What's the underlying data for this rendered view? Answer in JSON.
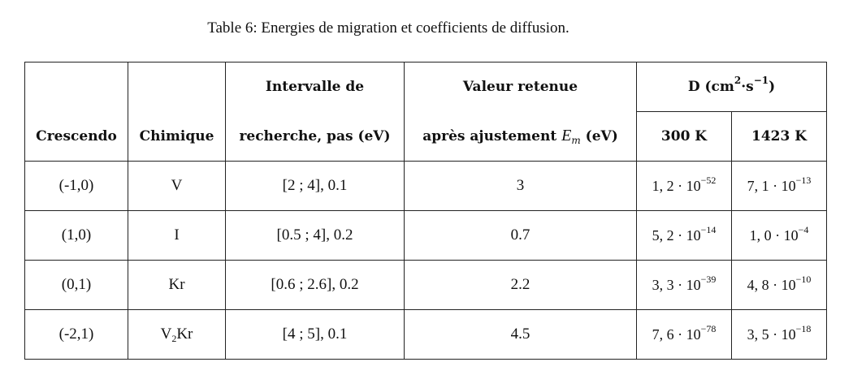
{
  "caption": "Table 6: Energies de migration et coefficients de diffusion.",
  "headers": {
    "crescendo": "Crescendo",
    "chimique": "Chimique",
    "intervalle_line1": "Intervalle de",
    "intervalle_line2": "recherche, pas (eV)",
    "valeur_line1": "Valeur retenue",
    "valeur_line2_prefix": "après ajustement ",
    "valeur_symbol": "E",
    "valeur_subscript": "m",
    "valeur_unit": " (eV)",
    "d_prefix": "D (cm",
    "d_sup1": "2",
    "d_mid": "·s",
    "d_sup2": "−1",
    "d_suffix": ")",
    "t300": "300 K",
    "t1423": "1423 K"
  },
  "rows": [
    {
      "crescendo": "(-1,0)",
      "chimique_base": "V",
      "chimique_sub": "",
      "chimique_tail": "",
      "intervalle": "[2 ; 4], 0.1",
      "valeur": "3",
      "d300_mant": "1, 2 · 10",
      "d300_exp": "−52",
      "d1423_mant": "7, 1 · 10",
      "d1423_exp": "−13"
    },
    {
      "crescendo": "(1,0)",
      "chimique_base": "I",
      "chimique_sub": "",
      "chimique_tail": "",
      "intervalle": "[0.5 ; 4], 0.2",
      "valeur": "0.7",
      "d300_mant": "5, 2 · 10",
      "d300_exp": "−14",
      "d1423_mant": "1, 0 · 10",
      "d1423_exp": "−4"
    },
    {
      "crescendo": "(0,1)",
      "chimique_base": "Kr",
      "chimique_sub": "",
      "chimique_tail": "",
      "intervalle": "[0.6 ; 2.6], 0.2",
      "valeur": "2.2",
      "d300_mant": "3, 3 · 10",
      "d300_exp": "−39",
      "d1423_mant": "4, 8 · 10",
      "d1423_exp": "−10"
    },
    {
      "crescendo": "(-2,1)",
      "chimique_base": "V",
      "chimique_sub": "2",
      "chimique_tail": "Kr",
      "intervalle": "[4 ; 5], 0.1",
      "valeur": "4.5",
      "d300_mant": "7, 6 · 10",
      "d300_exp": "−78",
      "d1423_mant": "3, 5 · 10",
      "d1423_exp": "−18"
    }
  ]
}
